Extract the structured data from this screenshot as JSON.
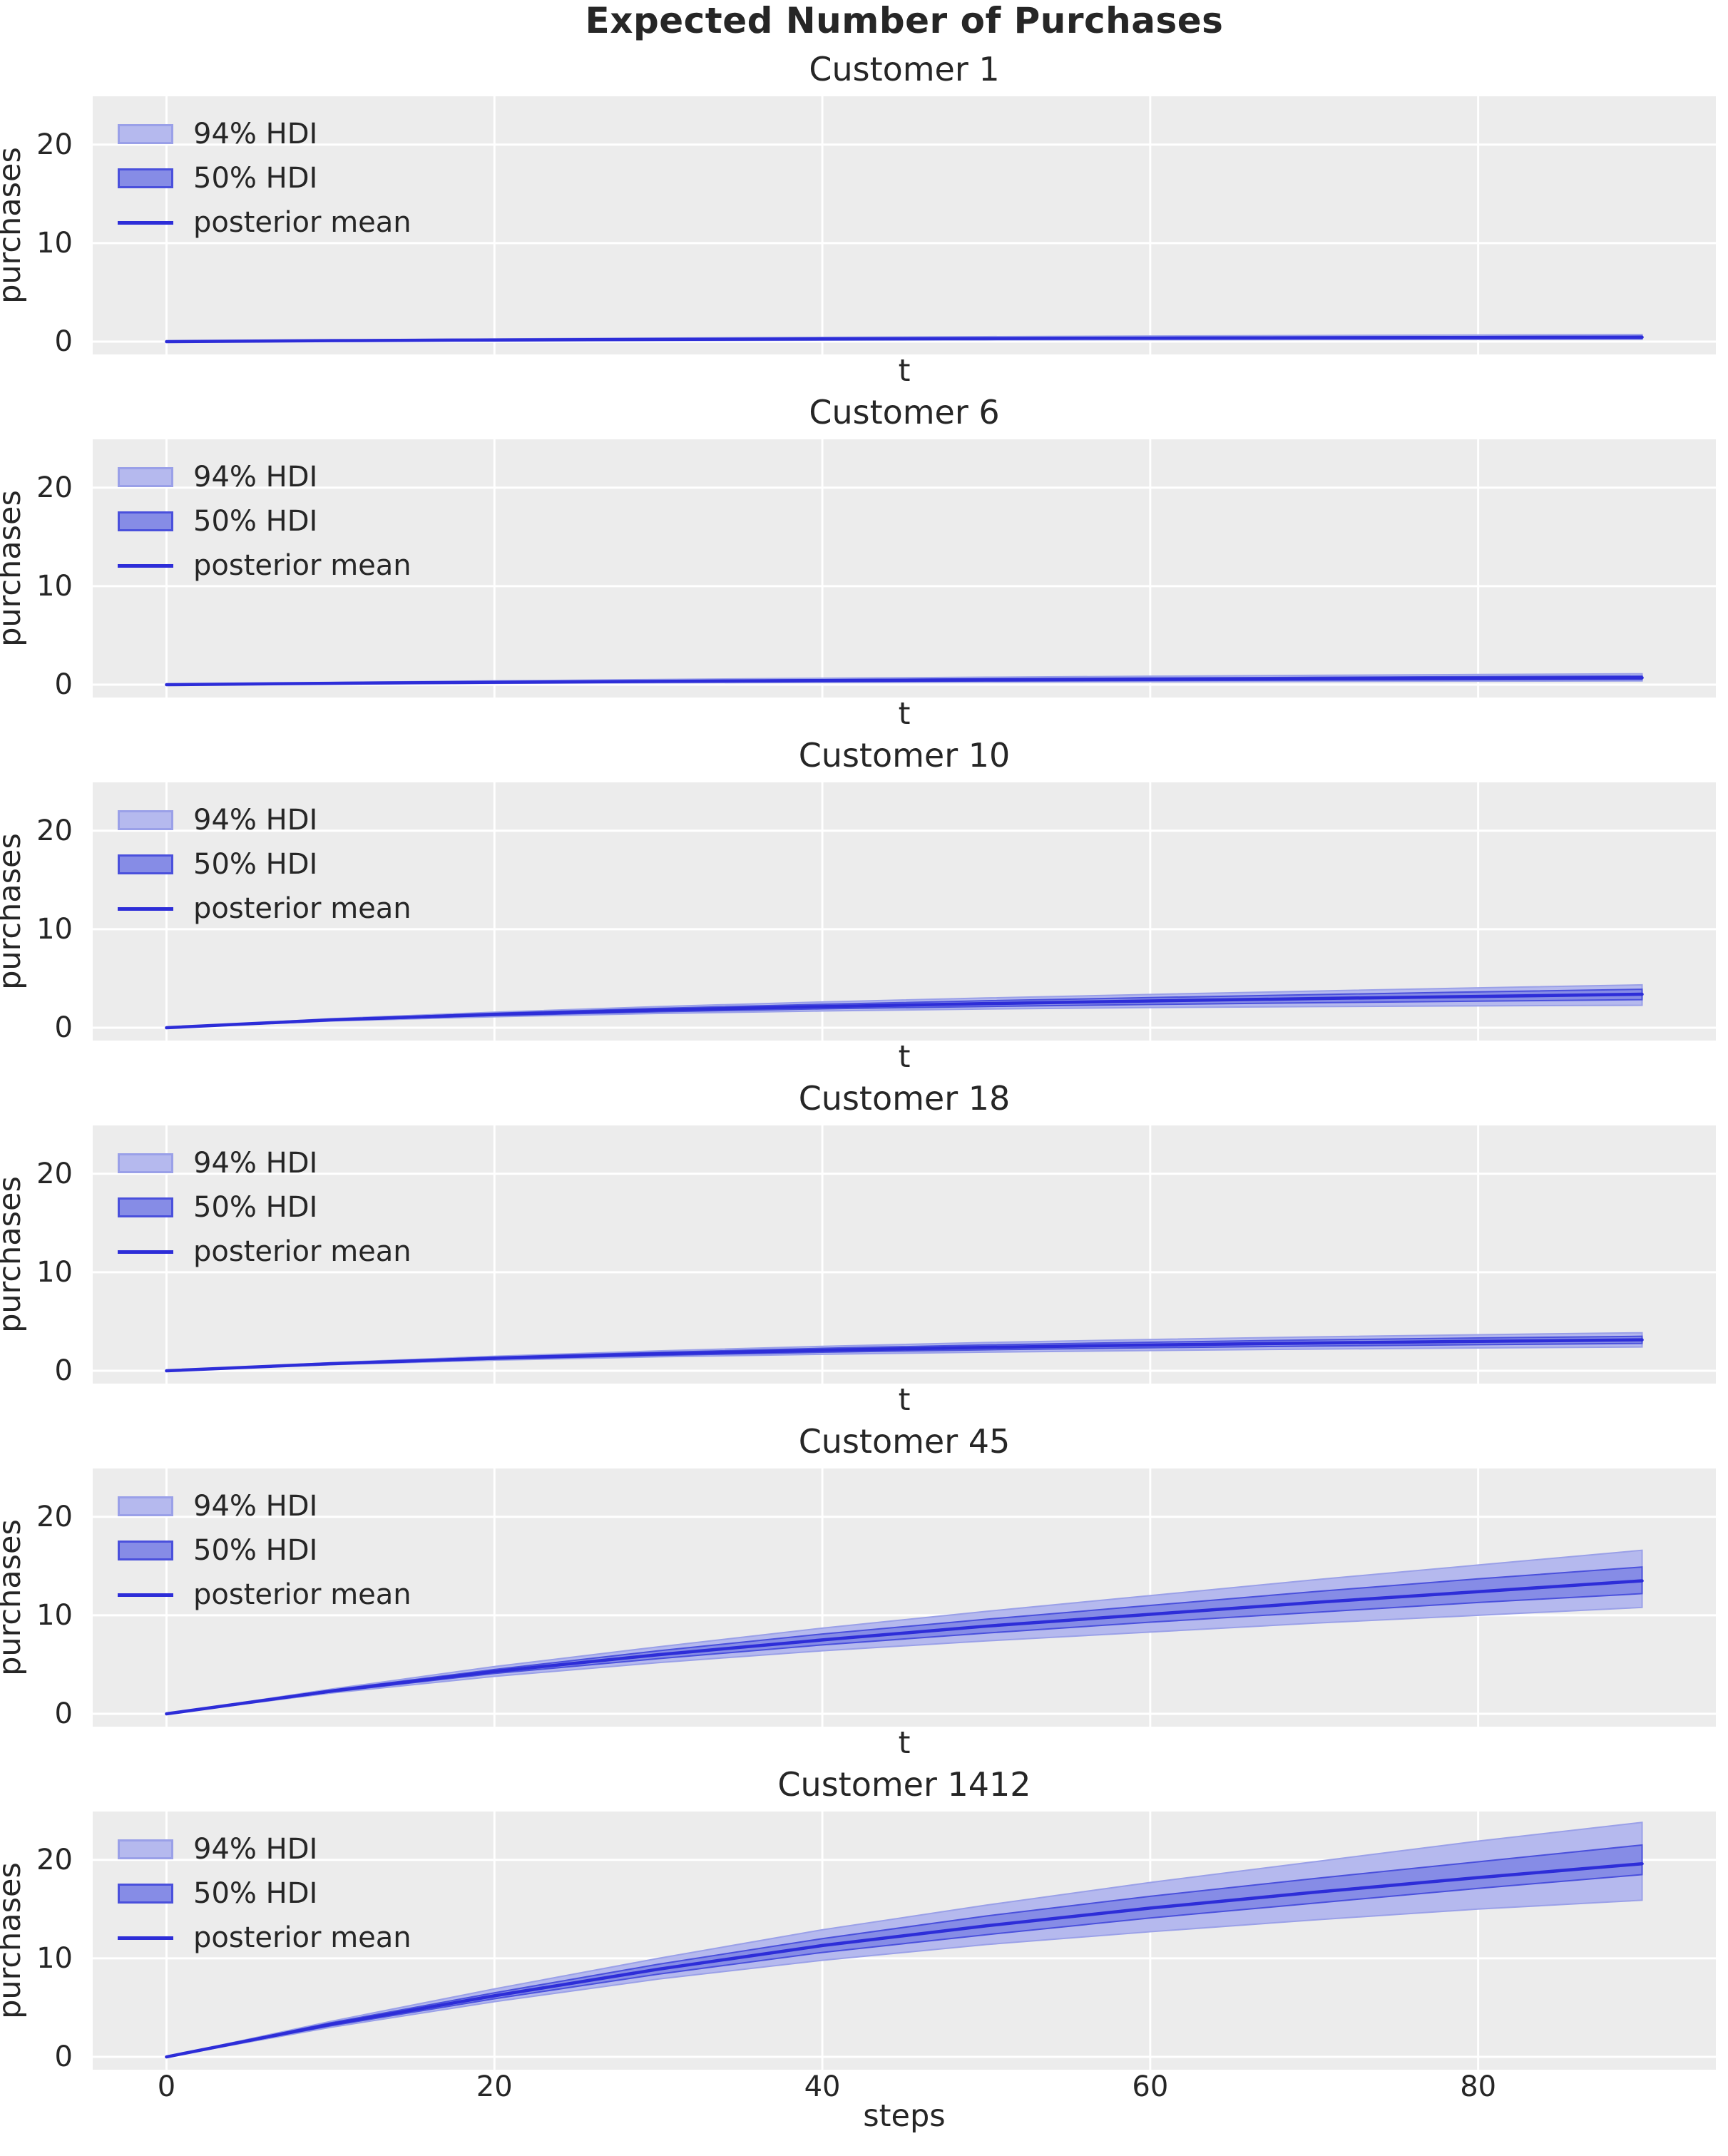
{
  "figure": {
    "suptitle": "Expected Number of Purchases",
    "colors": {
      "axes_bg": "#ececec",
      "grid": "#ffffff",
      "text": "#262626",
      "hdi94_fill": "#b5b9ee",
      "hdi94_edge": "#9aa0e8",
      "hdi50_fill": "#868ce6",
      "hdi50_edge": "#4a50dc",
      "mean_line": "#2d2dd8"
    },
    "legend_labels": [
      "94% HDI",
      "50% HDI",
      "posterior mean"
    ]
  },
  "chart_data": [
    {
      "type": "line",
      "title": "Customer 1",
      "xlabel": "t",
      "ylabel": "purchases",
      "xlim": [
        -4.5,
        94.5
      ],
      "ylim": [
        -1.3,
        24.9
      ],
      "xticks": [
        0,
        20,
        40,
        60,
        80
      ],
      "yticks": [
        0,
        10,
        20
      ],
      "show_xticklabels": false,
      "legend": [
        "94% HDI",
        "50% HDI",
        "posterior mean"
      ],
      "x": [
        0,
        10,
        20,
        30,
        40,
        50,
        60,
        70,
        80,
        90
      ],
      "series": [
        {
          "name": "posterior mean",
          "values": [
            0,
            0.1,
            0.17,
            0.23,
            0.28,
            0.32,
            0.36,
            0.39,
            0.42,
            0.45
          ]
        },
        {
          "name": "94% HDI lower",
          "values": [
            0,
            0.05,
            0.09,
            0.12,
            0.15,
            0.17,
            0.19,
            0.21,
            0.22,
            0.24
          ]
        },
        {
          "name": "94% HDI upper",
          "values": [
            0,
            0.16,
            0.27,
            0.36,
            0.44,
            0.51,
            0.57,
            0.62,
            0.67,
            0.72
          ]
        },
        {
          "name": "50% HDI lower",
          "values": [
            0,
            0.08,
            0.13,
            0.18,
            0.21,
            0.24,
            0.27,
            0.29,
            0.31,
            0.33
          ]
        },
        {
          "name": "50% HDI upper",
          "values": [
            0,
            0.12,
            0.21,
            0.28,
            0.34,
            0.39,
            0.44,
            0.48,
            0.52,
            0.56
          ]
        }
      ]
    },
    {
      "type": "line",
      "title": "Customer 6",
      "xlabel": "t",
      "ylabel": "purchases",
      "xlim": [
        -4.5,
        94.5
      ],
      "ylim": [
        -1.3,
        24.9
      ],
      "xticks": [
        0,
        20,
        40,
        60,
        80
      ],
      "yticks": [
        0,
        10,
        20
      ],
      "show_xticklabels": false,
      "legend": [
        "94% HDI",
        "50% HDI",
        "posterior mean"
      ],
      "x": [
        0,
        10,
        20,
        30,
        40,
        50,
        60,
        70,
        80,
        90
      ],
      "series": [
        {
          "name": "posterior mean",
          "values": [
            0,
            0.14,
            0.25,
            0.34,
            0.42,
            0.49,
            0.55,
            0.61,
            0.66,
            0.71
          ]
        },
        {
          "name": "94% HDI lower",
          "values": [
            0,
            0.08,
            0.14,
            0.19,
            0.23,
            0.27,
            0.3,
            0.33,
            0.36,
            0.38
          ]
        },
        {
          "name": "94% HDI upper",
          "values": [
            0,
            0.22,
            0.39,
            0.53,
            0.65,
            0.76,
            0.86,
            0.95,
            1.03,
            1.11
          ]
        },
        {
          "name": "50% HDI lower",
          "values": [
            0,
            0.11,
            0.19,
            0.26,
            0.32,
            0.37,
            0.42,
            0.46,
            0.5,
            0.54
          ]
        },
        {
          "name": "50% HDI upper",
          "values": [
            0,
            0.17,
            0.3,
            0.41,
            0.51,
            0.6,
            0.68,
            0.75,
            0.82,
            0.88
          ]
        }
      ]
    },
    {
      "type": "line",
      "title": "Customer 10",
      "xlabel": "t",
      "ylabel": "purchases",
      "xlim": [
        -4.5,
        94.5
      ],
      "ylim": [
        -1.3,
        24.9
      ],
      "xticks": [
        0,
        20,
        40,
        60,
        80
      ],
      "yticks": [
        0,
        10,
        20
      ],
      "show_xticklabels": false,
      "legend": [
        "94% HDI",
        "50% HDI",
        "posterior mean"
      ],
      "x": [
        0,
        10,
        20,
        30,
        40,
        50,
        60,
        70,
        80,
        90
      ],
      "series": [
        {
          "name": "posterior mean",
          "values": [
            0,
            0.8,
            1.35,
            1.8,
            2.15,
            2.45,
            2.72,
            2.96,
            3.18,
            3.4
          ]
        },
        {
          "name": "94% HDI lower",
          "values": [
            0,
            0.68,
            1.12,
            1.45,
            1.7,
            1.9,
            2.05,
            2.15,
            2.22,
            2.28
          ]
        },
        {
          "name": "94% HDI upper",
          "values": [
            0,
            0.92,
            1.58,
            2.15,
            2.62,
            3.02,
            3.38,
            3.72,
            4.05,
            4.35
          ]
        },
        {
          "name": "50% HDI lower",
          "values": [
            0,
            0.74,
            1.24,
            1.62,
            1.92,
            2.16,
            2.36,
            2.54,
            2.7,
            2.85
          ]
        },
        {
          "name": "50% HDI upper",
          "values": [
            0,
            0.86,
            1.47,
            1.97,
            2.38,
            2.74,
            3.06,
            3.36,
            3.64,
            3.9
          ]
        }
      ]
    },
    {
      "type": "line",
      "title": "Customer 18",
      "xlabel": "t",
      "ylabel": "purchases",
      "xlim": [
        -4.5,
        94.5
      ],
      "ylim": [
        -1.3,
        24.9
      ],
      "xticks": [
        0,
        20,
        40,
        60,
        80
      ],
      "yticks": [
        0,
        10,
        20
      ],
      "show_xticklabels": false,
      "legend": [
        "94% HDI",
        "50% HDI",
        "posterior mean"
      ],
      "x": [
        0,
        10,
        20,
        30,
        40,
        50,
        60,
        70,
        80,
        90
      ],
      "series": [
        {
          "name": "posterior mean",
          "values": [
            0,
            0.72,
            1.28,
            1.72,
            2.08,
            2.38,
            2.62,
            2.82,
            2.99,
            3.14
          ]
        },
        {
          "name": "94% HDI lower",
          "values": [
            0,
            0.62,
            1.08,
            1.42,
            1.68,
            1.89,
            2.06,
            2.2,
            2.32,
            2.42
          ]
        },
        {
          "name": "94% HDI upper",
          "values": [
            0,
            0.82,
            1.48,
            2.02,
            2.48,
            2.87,
            3.18,
            3.44,
            3.66,
            3.86
          ]
        },
        {
          "name": "50% HDI lower",
          "values": [
            0,
            0.67,
            1.18,
            1.57,
            1.88,
            2.13,
            2.34,
            2.51,
            2.65,
            2.78
          ]
        },
        {
          "name": "50% HDI upper",
          "values": [
            0,
            0.77,
            1.38,
            1.87,
            2.28,
            2.63,
            2.9,
            3.13,
            3.33,
            3.5
          ]
        }
      ]
    },
    {
      "type": "line",
      "title": "Customer 45",
      "xlabel": "t",
      "ylabel": "purchases",
      "xlim": [
        -4.5,
        94.5
      ],
      "ylim": [
        -1.3,
        24.9
      ],
      "xticks": [
        0,
        20,
        40,
        60,
        80
      ],
      "yticks": [
        0,
        10,
        20
      ],
      "show_xticklabels": false,
      "legend": [
        "94% HDI",
        "50% HDI",
        "posterior mean"
      ],
      "x": [
        0,
        10,
        20,
        30,
        40,
        50,
        60,
        70,
        80,
        90
      ],
      "series": [
        {
          "name": "posterior mean",
          "values": [
            0,
            2.3,
            4.3,
            6.0,
            7.5,
            8.9,
            10.1,
            11.3,
            12.4,
            13.5
          ]
        },
        {
          "name": "94% HDI lower",
          "values": [
            0,
            2.1,
            3.8,
            5.2,
            6.4,
            7.4,
            8.3,
            9.2,
            10.0,
            10.8
          ]
        },
        {
          "name": "94% HDI upper",
          "values": [
            0,
            2.5,
            4.8,
            6.8,
            8.7,
            10.4,
            12.0,
            13.6,
            15.1,
            16.6
          ]
        },
        {
          "name": "50% HDI lower",
          "values": [
            0,
            2.2,
            4.1,
            5.6,
            7.0,
            8.2,
            9.3,
            10.3,
            11.3,
            12.2
          ]
        },
        {
          "name": "50% HDI upper",
          "values": [
            0,
            2.4,
            4.5,
            6.4,
            8.1,
            9.6,
            11.0,
            12.4,
            13.7,
            14.9
          ]
        }
      ]
    },
    {
      "type": "line",
      "title": "Customer 1412",
      "xlabel": "steps",
      "ylabel": "purchases",
      "xlim": [
        -4.5,
        94.5
      ],
      "ylim": [
        -1.3,
        24.9
      ],
      "xticks": [
        0,
        20,
        40,
        60,
        80
      ],
      "yticks": [
        0,
        10,
        20
      ],
      "show_xticklabels": true,
      "legend": [
        "94% HDI",
        "50% HDI",
        "posterior mean"
      ],
      "x": [
        0,
        10,
        20,
        30,
        40,
        50,
        60,
        70,
        80,
        90
      ],
      "series": [
        {
          "name": "posterior mean",
          "values": [
            0,
            3.3,
            6.2,
            8.9,
            11.3,
            13.3,
            15.1,
            16.7,
            18.2,
            19.6
          ]
        },
        {
          "name": "94% HDI lower",
          "values": [
            0,
            3.0,
            5.6,
            7.9,
            9.8,
            11.4,
            12.7,
            13.9,
            15.0,
            15.9
          ]
        },
        {
          "name": "94% HDI upper",
          "values": [
            0,
            3.6,
            6.9,
            10.0,
            12.9,
            15.4,
            17.7,
            19.8,
            21.9,
            23.8
          ]
        },
        {
          "name": "50% HDI lower",
          "values": [
            0,
            3.15,
            5.9,
            8.4,
            10.6,
            12.4,
            14.1,
            15.6,
            17.1,
            18.5
          ]
        },
        {
          "name": "50% HDI upper",
          "values": [
            0,
            3.45,
            6.5,
            9.4,
            12.0,
            14.3,
            16.3,
            18.1,
            19.8,
            21.5
          ]
        }
      ]
    }
  ]
}
